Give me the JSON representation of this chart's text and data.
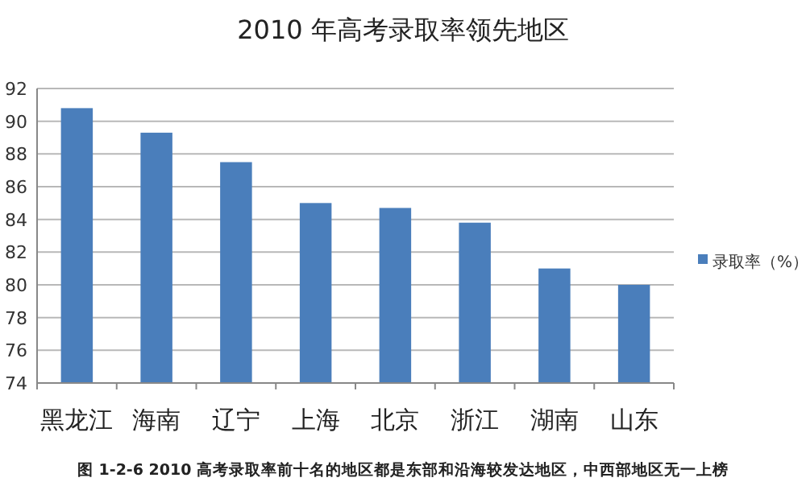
{
  "chart_data": {
    "type": "bar",
    "title": "2010 年高考录取率领先地区",
    "categories": [
      "黑龙江",
      "海南",
      "辽宁",
      "上海",
      "北京",
      "浙江",
      "湖南",
      "山东"
    ],
    "series": [
      {
        "name": "录取率（%）",
        "color": "#4a7ebb",
        "values": [
          90.8,
          89.3,
          87.5,
          85.0,
          84.7,
          83.8,
          81.0,
          80.0
        ]
      }
    ],
    "ylim": [
      74,
      92
    ],
    "yticks": [
      74,
      76,
      78,
      80,
      82,
      84,
      86,
      88,
      90,
      92
    ],
    "grid": "y",
    "legend": "right",
    "annotations": [
      "图 1-2-6 2010 高考录取率前十名的地区都是东部和沿海较发达地区，中西部地区无一上榜"
    ]
  }
}
